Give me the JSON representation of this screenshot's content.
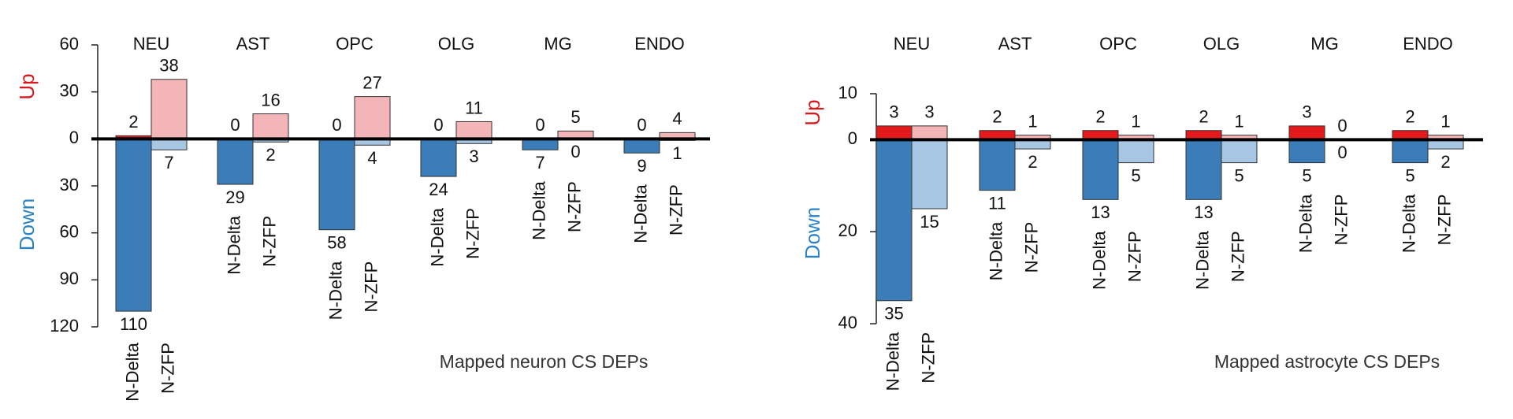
{
  "chart_data": [
    {
      "type": "bar",
      "note": "Mapped neuron CS DEPs",
      "ylabel": {
        "up": "Up",
        "down": "Down"
      },
      "categories": [
        "NEU",
        "AST",
        "OPC",
        "OLG",
        "MG",
        "ENDO"
      ],
      "ylim": [
        -120,
        60
      ],
      "yticks": [
        60,
        30,
        0,
        {
          "value": -30,
          "label": "30"
        },
        {
          "value": -60,
          "label": "60"
        },
        {
          "value": -90,
          "label": "90"
        },
        {
          "value": -120,
          "label": "120"
        }
      ],
      "series": [
        {
          "color": "#e3191c",
          "values": [
            2,
            0,
            0,
            0,
            0,
            0
          ]
        },
        {
          "color": "#f4b5b9",
          "values": [
            38,
            16,
            27,
            11,
            5,
            4
          ]
        },
        {
          "name": "N-Delta",
          "color": "#3a7db8",
          "values": [
            -110,
            -29,
            -58,
            -24,
            -7,
            -9
          ],
          "value_labels": [
            "110",
            "29",
            "58",
            "24",
            "7",
            "9"
          ]
        },
        {
          "name": "N-ZFP",
          "color": "#a6c6e4",
          "values": [
            -7,
            -2,
            -4,
            -3,
            0,
            -1
          ],
          "value_labels": [
            "7",
            "2",
            "4",
            "3",
            "0",
            "1"
          ]
        }
      ]
    },
    {
      "type": "bar",
      "note": "Mapped astrocyte CS DEPs",
      "ylabel": {
        "up": "Up",
        "down": "Down"
      },
      "categories": [
        "NEU",
        "AST",
        "OPC",
        "OLG",
        "MG",
        "ENDO"
      ],
      "ylim": [
        -40,
        10
      ],
      "yticks": [
        10,
        0,
        {
          "value": -20,
          "label": "20"
        },
        {
          "value": -40,
          "label": "40"
        }
      ],
      "series": [
        {
          "color": "#e3191c",
          "values": [
            3,
            2,
            2,
            2,
            3,
            2
          ]
        },
        {
          "color": "#f4b5b9",
          "values": [
            3,
            1,
            1,
            1,
            0,
            1
          ]
        },
        {
          "name": "N-Delta",
          "color": "#3a7db8",
          "values": [
            -35,
            -11,
            -13,
            -13,
            -5,
            -5
          ],
          "value_labels": [
            "35",
            "11",
            "13",
            "13",
            "5",
            "5"
          ]
        },
        {
          "name": "N-ZFP",
          "color": "#a6c6e4",
          "values": [
            -15,
            -2,
            -5,
            -5,
            0,
            -2
          ],
          "value_labels": [
            "15",
            "2",
            "5",
            "5",
            "0",
            "2"
          ]
        }
      ]
    }
  ]
}
